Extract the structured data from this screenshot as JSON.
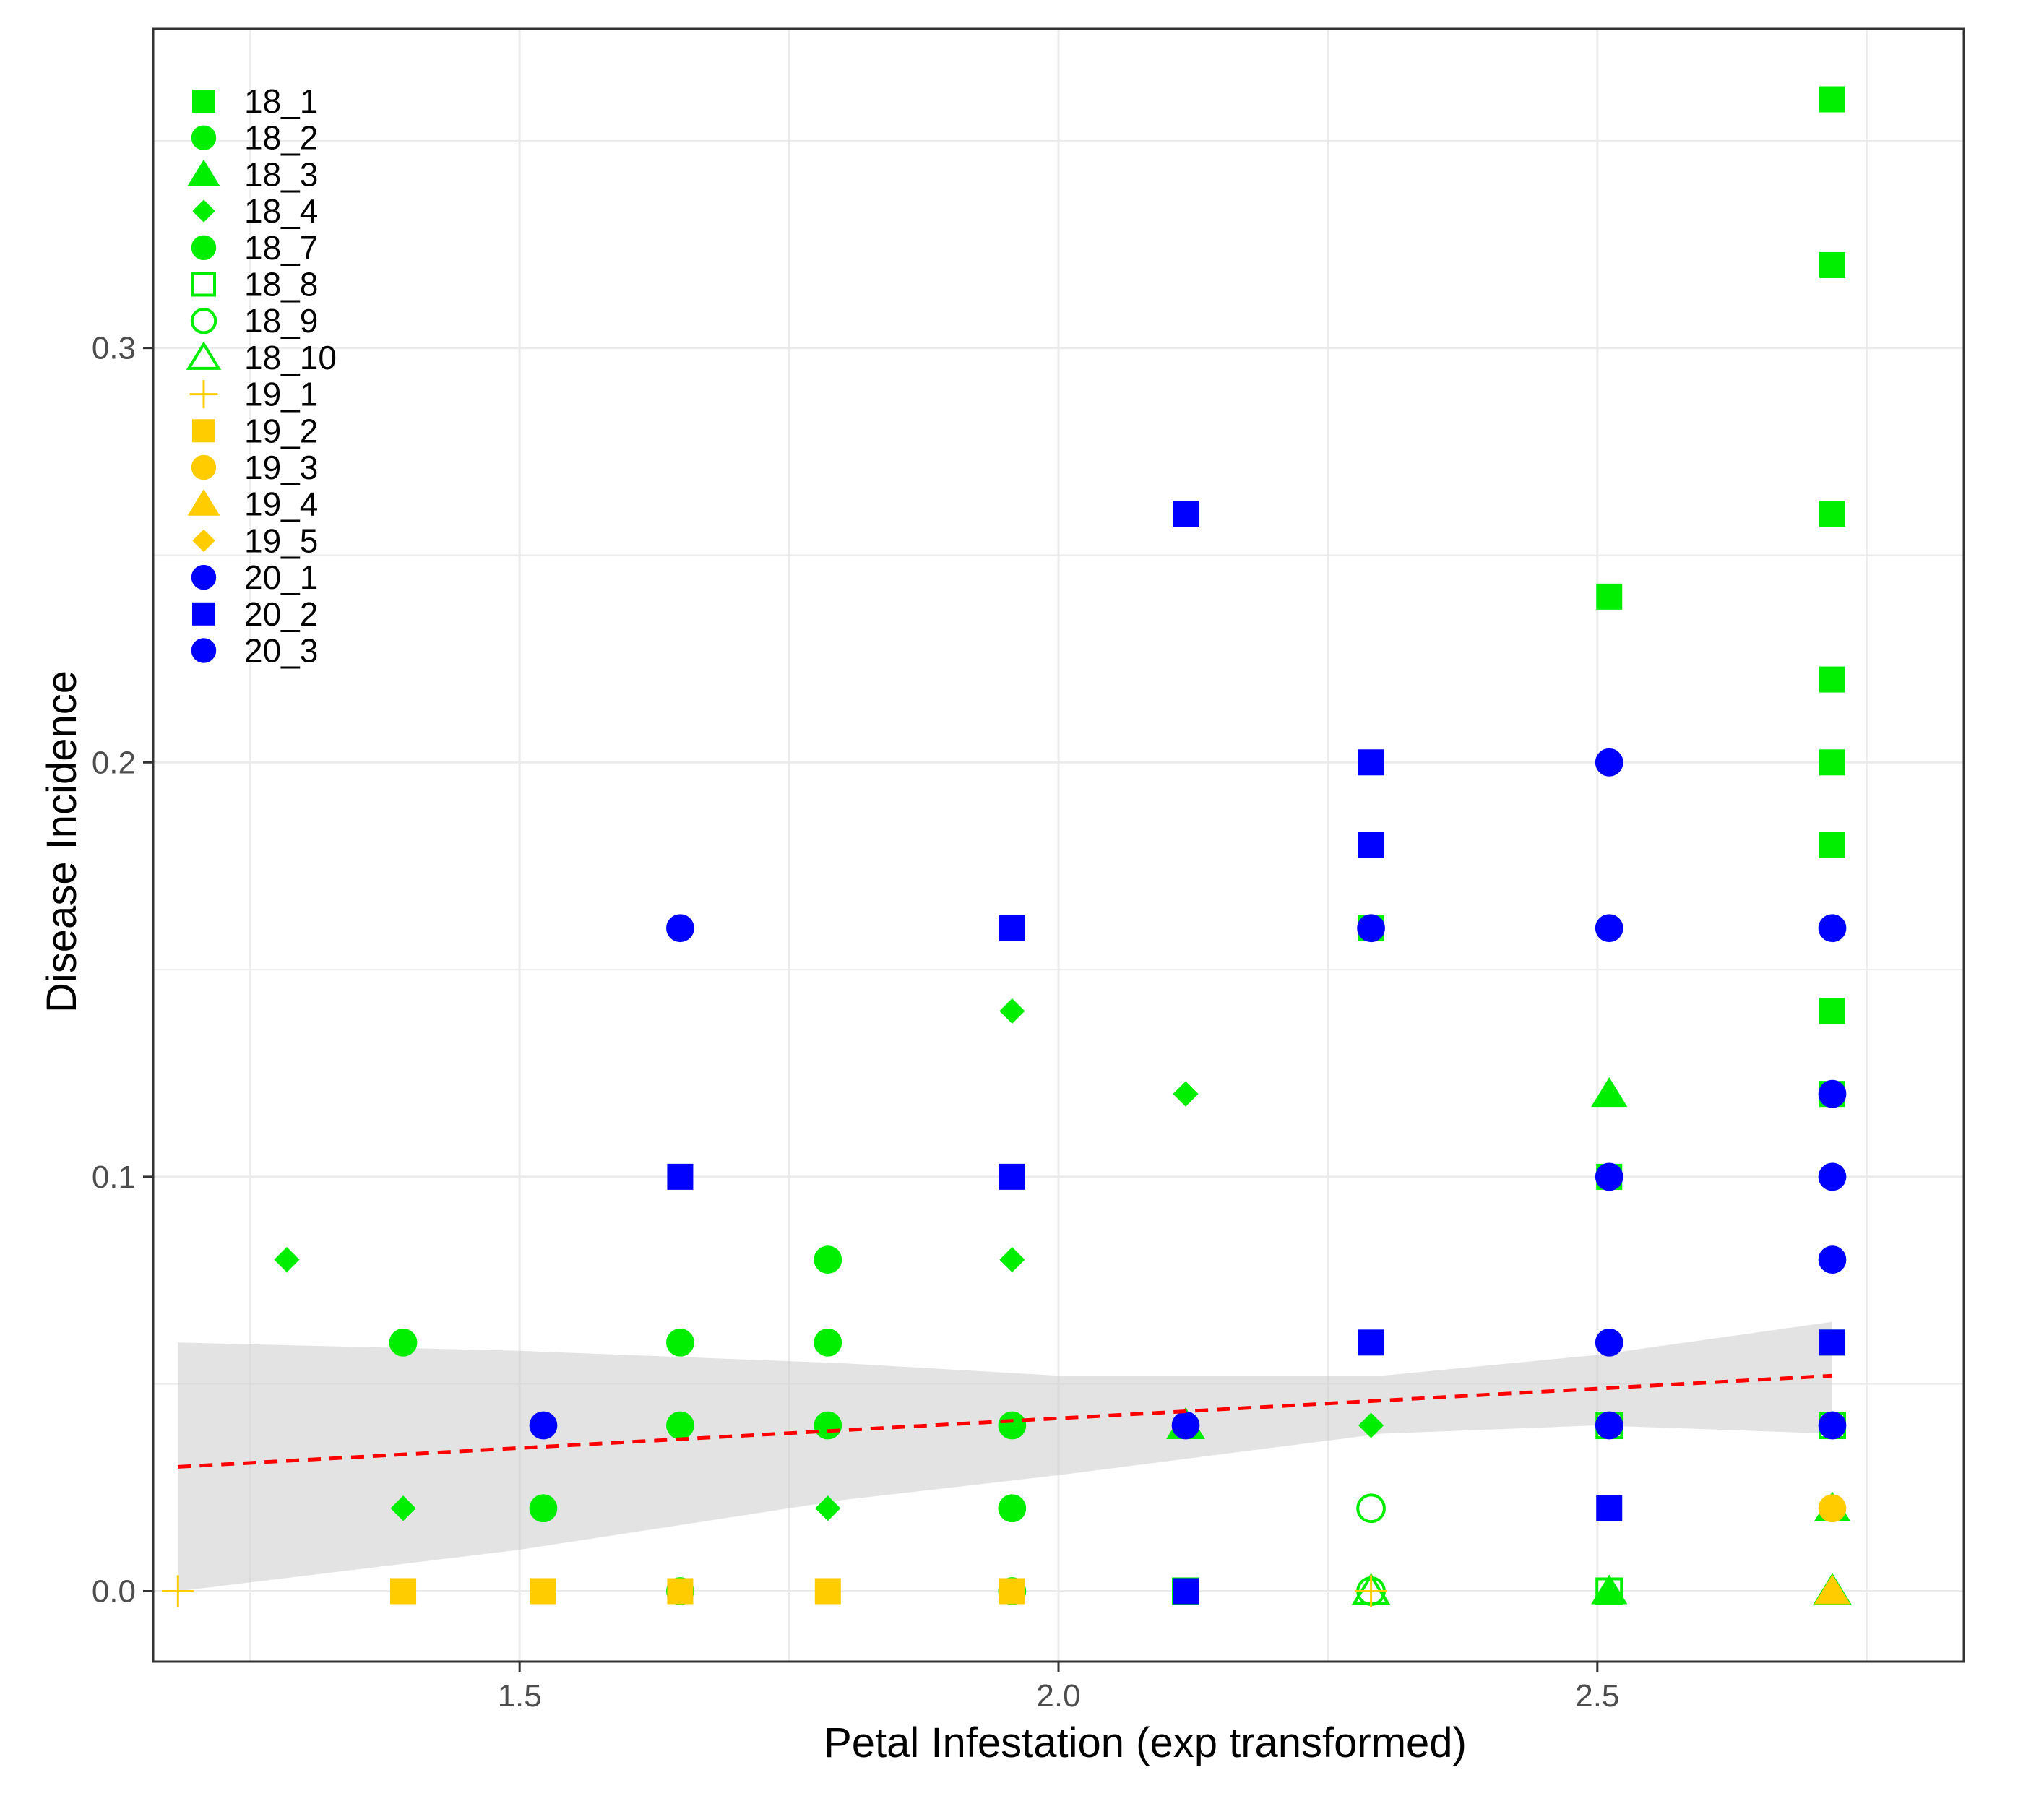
{
  "chart_data": {
    "type": "scatter",
    "title": "",
    "xlabel": "Petal Infestation (exp transformed)",
    "ylabel": "Disease Incidence",
    "xlim": [
      1.16,
      2.84
    ],
    "ylim": [
      -0.017,
      0.377
    ],
    "x_ticks": [
      1.5,
      2.0,
      2.5
    ],
    "x_tick_labels": [
      "1.5",
      "2.0",
      "2.5"
    ],
    "x_minor_ticks": [
      1.25,
      1.75,
      2.25,
      2.75
    ],
    "y_ticks": [
      0.0,
      0.1,
      0.2,
      0.3
    ],
    "y_tick_labels": [
      "0.0",
      "0.1",
      "0.2",
      "0.3"
    ],
    "y_minor_ticks": [
      0.05,
      0.15,
      0.25,
      0.35
    ],
    "grid": true,
    "legend_position": "top-left",
    "colors": {
      "green": "#00ee00",
      "yellow": "#ffcc00",
      "blue": "#0000ff",
      "trend": "#ff0000",
      "band": "#cccccc",
      "grid": "#ebebeb"
    },
    "series": [
      {
        "name": "18_1",
        "color": "#00ee00",
        "shape": "square",
        "filled": true,
        "points": [
          [
            2.718,
            0.36
          ],
          [
            2.718,
            0.32
          ],
          [
            2.718,
            0.26
          ],
          [
            2.718,
            0.22
          ],
          [
            2.718,
            0.2
          ],
          [
            2.718,
            0.18
          ],
          [
            2.718,
            0.14
          ],
          [
            2.718,
            0.12
          ],
          [
            2.718,
            0.06
          ],
          [
            2.511,
            0.24
          ],
          [
            2.511,
            0.1
          ],
          [
            2.29,
            0.16
          ]
        ]
      },
      {
        "name": "18_2",
        "color": "#00ee00",
        "shape": "circle",
        "filled": true,
        "points": [
          [
            1.392,
            0.06
          ],
          [
            1.649,
            0.06
          ],
          [
            1.649,
            0.04
          ],
          [
            1.786,
            0.08
          ],
          [
            1.786,
            0.06
          ],
          [
            1.786,
            0.04
          ],
          [
            1.957,
            0.04
          ]
        ]
      },
      {
        "name": "18_3",
        "color": "#00ee00",
        "shape": "triangle",
        "filled": true,
        "points": [
          [
            2.511,
            0.12
          ],
          [
            2.118,
            0.04
          ],
          [
            2.511,
            0.0
          ],
          [
            2.718,
            0.02
          ],
          [
            2.718,
            0.0
          ]
        ]
      },
      {
        "name": "18_4",
        "color": "#00ee00",
        "shape": "diamond",
        "filled": true,
        "points": [
          [
            1.284,
            0.08
          ],
          [
            1.392,
            0.02
          ],
          [
            1.786,
            0.02
          ],
          [
            1.957,
            0.14
          ],
          [
            1.957,
            0.08
          ],
          [
            2.118,
            0.12
          ],
          [
            2.29,
            0.04
          ]
        ]
      },
      {
        "name": "18_7",
        "color": "#00ee00",
        "shape": "circle",
        "filled": true,
        "points": [
          [
            1.522,
            0.02
          ],
          [
            1.957,
            0.02
          ],
          [
            1.649,
            0.0
          ],
          [
            1.957,
            0.0
          ]
        ]
      },
      {
        "name": "18_8",
        "color": "#00ee00",
        "shape": "square",
        "filled": false,
        "points": [
          [
            2.718,
            0.04
          ],
          [
            2.511,
            0.04
          ],
          [
            2.118,
            0.0
          ],
          [
            2.511,
            0.0
          ]
        ]
      },
      {
        "name": "18_9",
        "color": "#00ee00",
        "shape": "circle",
        "filled": false,
        "points": [
          [
            2.29,
            0.02
          ],
          [
            2.29,
            0.0
          ]
        ]
      },
      {
        "name": "18_10",
        "color": "#00ee00",
        "shape": "triangle",
        "filled": false,
        "points": [
          [
            2.29,
            0.0
          ],
          [
            2.718,
            0.0
          ],
          [
            2.118,
            0.04
          ]
        ]
      },
      {
        "name": "19_1",
        "color": "#ffcc00",
        "shape": "plus",
        "filled": false,
        "points": [
          [
            1.183,
            0.0
          ],
          [
            2.29,
            0.0
          ]
        ]
      },
      {
        "name": "19_2",
        "color": "#ffcc00",
        "shape": "square",
        "filled": true,
        "points": [
          [
            1.392,
            0.0
          ],
          [
            1.522,
            0.0
          ],
          [
            1.649,
            0.0
          ],
          [
            1.786,
            0.0
          ],
          [
            1.957,
            0.0
          ]
        ]
      },
      {
        "name": "19_3",
        "color": "#ffcc00",
        "shape": "circle",
        "filled": true,
        "points": [
          [
            2.718,
            0.02
          ]
        ]
      },
      {
        "name": "19_4",
        "color": "#ffcc00",
        "shape": "triangle",
        "filled": true,
        "points": [
          [
            2.718,
            0.0
          ]
        ]
      },
      {
        "name": "19_5",
        "color": "#ffcc00",
        "shape": "diamond",
        "filled": true,
        "points": []
      },
      {
        "name": "20_1",
        "color": "#0000ff",
        "shape": "circle",
        "filled": true,
        "points": [
          [
            1.649,
            0.16
          ],
          [
            2.29,
            0.16
          ],
          [
            2.511,
            0.2
          ],
          [
            2.511,
            0.16
          ],
          [
            2.511,
            0.1
          ],
          [
            2.511,
            0.06
          ],
          [
            2.718,
            0.16
          ],
          [
            2.718,
            0.12
          ],
          [
            2.718,
            0.1
          ],
          [
            2.718,
            0.08
          ],
          [
            2.718,
            0.04
          ]
        ]
      },
      {
        "name": "20_2",
        "color": "#0000ff",
        "shape": "square",
        "filled": true,
        "points": [
          [
            2.118,
            0.26
          ],
          [
            2.29,
            0.2
          ],
          [
            2.29,
            0.18
          ],
          [
            1.957,
            0.16
          ],
          [
            1.957,
            0.1
          ],
          [
            1.649,
            0.1
          ],
          [
            2.29,
            0.06
          ],
          [
            2.511,
            0.02
          ],
          [
            2.718,
            0.06
          ],
          [
            2.118,
            0.0
          ]
        ]
      },
      {
        "name": "20_3",
        "color": "#0000ff",
        "shape": "circle",
        "filled": true,
        "points": [
          [
            1.522,
            0.04
          ],
          [
            2.118,
            0.04
          ],
          [
            2.511,
            0.04
          ]
        ]
      }
    ],
    "trend_line": {
      "style": "dashed",
      "x": [
        1.183,
        2.718
      ],
      "y": [
        0.03,
        0.052
      ]
    },
    "confidence_band": {
      "x": [
        1.183,
        1.5,
        1.8,
        2.0,
        2.3,
        2.5,
        2.718
      ],
      "upper": [
        0.06,
        0.058,
        0.055,
        0.052,
        0.052,
        0.057,
        0.065
      ],
      "lower": [
        0.0,
        0.01,
        0.022,
        0.028,
        0.038,
        0.04,
        0.038
      ]
    }
  }
}
